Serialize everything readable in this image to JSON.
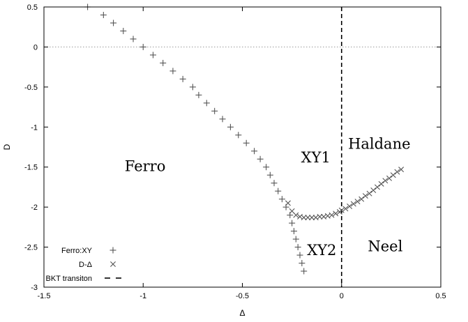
{
  "chart_data": {
    "type": "scatter",
    "title": "",
    "xlabel": "Δ",
    "ylabel": "D",
    "xlim": [
      -1.5,
      0.5
    ],
    "ylim": [
      -3,
      0.5
    ],
    "xticks": [
      -1.5,
      -1,
      -0.5,
      0,
      0.5
    ],
    "yticks": [
      -3,
      -2.5,
      -2,
      -1.5,
      -1,
      -0.5,
      0,
      0.5
    ],
    "xtick_labels": [
      "-1.5",
      "-1",
      "-0.5",
      "0",
      "0.5"
    ],
    "ytick_labels": [
      "-3",
      "-2.5",
      "-2",
      "-1.5",
      "-1",
      "-0.5",
      "0",
      "0.5"
    ],
    "grid": false,
    "legend_position": "bottom-left",
    "series": [
      {
        "name": "Ferro:XY",
        "marker": "plus",
        "color": "#555555",
        "x": [
          -1.28,
          -1.2,
          -1.15,
          -1.1,
          -1.05,
          -1.0,
          -0.95,
          -0.9,
          -0.85,
          -0.8,
          -0.75,
          -0.72,
          -0.68,
          -0.64,
          -0.6,
          -0.56,
          -0.52,
          -0.48,
          -0.44,
          -0.41,
          -0.38,
          -0.36,
          -0.34,
          -0.32,
          -0.3,
          -0.28,
          -0.26,
          -0.25,
          -0.24,
          -0.23,
          -0.22,
          -0.21,
          -0.2,
          -0.19
        ],
        "y": [
          0.5,
          0.4,
          0.3,
          0.2,
          0.1,
          0.0,
          -0.1,
          -0.2,
          -0.3,
          -0.4,
          -0.5,
          -0.6,
          -0.7,
          -0.8,
          -0.9,
          -1.0,
          -1.1,
          -1.2,
          -1.3,
          -1.4,
          -1.5,
          -1.6,
          -1.7,
          -1.8,
          -1.9,
          -2.0,
          -2.1,
          -2.2,
          -2.3,
          -2.4,
          -2.5,
          -2.6,
          -2.7,
          -2.8
        ]
      },
      {
        "name": "D-Δ",
        "marker": "cross",
        "color": "#555555",
        "x": [
          -0.27,
          -0.25,
          -0.23,
          -0.21,
          -0.19,
          -0.17,
          -0.15,
          -0.13,
          -0.11,
          -0.09,
          -0.07,
          -0.05,
          -0.03,
          -0.01,
          0.0,
          0.02,
          0.04,
          0.06,
          0.08,
          0.1,
          0.12,
          0.14,
          0.16,
          0.18,
          0.2,
          0.22,
          0.24,
          0.26,
          0.28,
          0.3
        ],
        "y": [
          -1.95,
          -2.05,
          -2.1,
          -2.12,
          -2.13,
          -2.13,
          -2.13,
          -2.13,
          -2.12,
          -2.12,
          -2.11,
          -2.1,
          -2.08,
          -2.06,
          -2.04,
          -2.02,
          -1.99,
          -1.96,
          -1.93,
          -1.9,
          -1.86,
          -1.83,
          -1.79,
          -1.75,
          -1.71,
          -1.67,
          -1.64,
          -1.6,
          -1.56,
          -1.53
        ]
      }
    ],
    "lines": [
      {
        "name": "BKT transiton",
        "style": "dashed",
        "orientation": "vertical",
        "x": 0
      },
      {
        "name": "",
        "style": "dotted",
        "orientation": "horizontal",
        "y": 0,
        "color": "#999999"
      }
    ],
    "annotations": [
      {
        "text": "Ferro",
        "x": -0.99,
        "y": -1.55
      },
      {
        "text": "XY1",
        "x": -0.13,
        "y": -1.44
      },
      {
        "text": "Haldane",
        "x": 0.19,
        "y": -1.27
      },
      {
        "text": "XY2",
        "x": -0.1,
        "y": -2.6
      },
      {
        "text": "Neel",
        "x": 0.22,
        "y": -2.55
      }
    ],
    "legend": [
      {
        "label": "Ferro:XY",
        "marker": "plus"
      },
      {
        "label": "D-Δ",
        "marker": "cross"
      },
      {
        "label": "BKT transiton",
        "marker": "dash"
      }
    ]
  }
}
